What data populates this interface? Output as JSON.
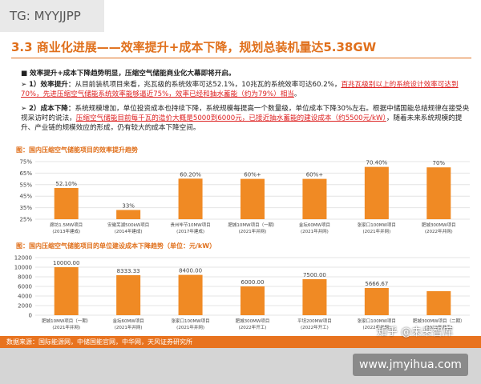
{
  "watermark": "TG: MYYJJPP",
  "title": "3.3 商业化进展——效率提升+成本下降，规划总装机量达5.38GW",
  "bullets": {
    "lead": "效率提升+成本下降趋势明显，压缩空气储能商业化大幕即将开启。",
    "p1": [
      "1）效率提升：",
      "从目前装机项目来看，兆瓦级的系统效率可达52.1%，10兆瓦的系统效率可达60.2%，",
      "百兆瓦级别以上的系统设计效率可达到70%，先进压缩空气储能系统效率能够逼近75%，效率已经和抽水蓄能（约为79%）相当",
      "。"
    ],
    "p2": [
      "2）成本下降：",
      "系统规模增加，单位投资成本也持续下降，系统规模每提高一个数量级，单位成本下降30%左右。根据中储国能总结规律在接受央视采访时的说法，",
      "压缩空气储能目前每千瓦的造价大概是5000到6000元，已接近抽水蓄能的建设成本（约5500元/kW）",
      "，随着未来系统规模的提升、产业链的规模效应的形成，仍有较大的成本下降空间。"
    ]
  },
  "chart_data": [
    {
      "type": "bar",
      "title": "图：国内压缩空气储能项目的效率提升趋势",
      "color": "#f08a24",
      "categories": [
        "廊坊1.5MW项目",
        "安徽芜湖500kW项目",
        "贵州毕节10MW项目",
        "肥城10MW项目（一期）",
        "金坛60MW项目",
        "张家口100MW项目",
        "肥城300MW项目"
      ],
      "category_years": [
        "(2013年建成)",
        "(2014年建成)",
        "(2017年建成)",
        "(2021年并网)",
        "(2021年并网)",
        "(2021年并网)",
        "(2022年并网)"
      ],
      "values": [
        52.1,
        33,
        60.2,
        60,
        60,
        70.4,
        70
      ],
      "value_labels": [
        "52.10%",
        "33%",
        "60.20%",
        "60%+",
        "60%+",
        "70.40%",
        "70%"
      ],
      "ylim": [
        25,
        75
      ],
      "yticks": [
        {
          "value": 25,
          "label": "25%"
        },
        {
          "value": 35,
          "label": "35%"
        },
        {
          "value": 45,
          "label": "45%"
        },
        {
          "value": 55,
          "label": "55%"
        },
        {
          "value": 65,
          "label": "65%"
        },
        {
          "value": 75,
          "label": "75%"
        }
      ],
      "grid": true
    },
    {
      "type": "bar",
      "title": "图：国内压缩空气储能项目的单位建设成本下降趋势（单位：元/kW）",
      "color": "#f08a24",
      "categories": [
        "肥城10MW项目（一期）",
        "金坛60MW项目",
        "张家口100MW项目",
        "肥城300MW项目",
        "平坦200MW项目",
        "张家口100MW项目",
        "肥城300MW项目（二期）"
      ],
      "category_years": [
        "(2021年并网)",
        "(2021年并网)",
        "(2021年并网)",
        "(2022年开工)",
        "(2022年开工)",
        "(2022年并网)",
        "(2022年开工)"
      ],
      "values": [
        10000,
        8333.33,
        8400,
        6000,
        7500,
        5666.67,
        5000
      ],
      "value_labels": [
        "10000.00",
        "8333.33",
        "8400.00",
        "6000.00",
        "7500.00",
        "5666.67",
        null
      ],
      "ylim": [
        0,
        12000
      ],
      "yticks": [
        0,
        2000,
        4000,
        6000,
        8000,
        10000,
        12000
      ],
      "grid": true
    }
  ],
  "source": "数据来源：国际能源网，中储国能官网，中华网，天风证券研究所",
  "zhihu": "知乎 @未来智库",
  "url": "www.jmyihua.com"
}
